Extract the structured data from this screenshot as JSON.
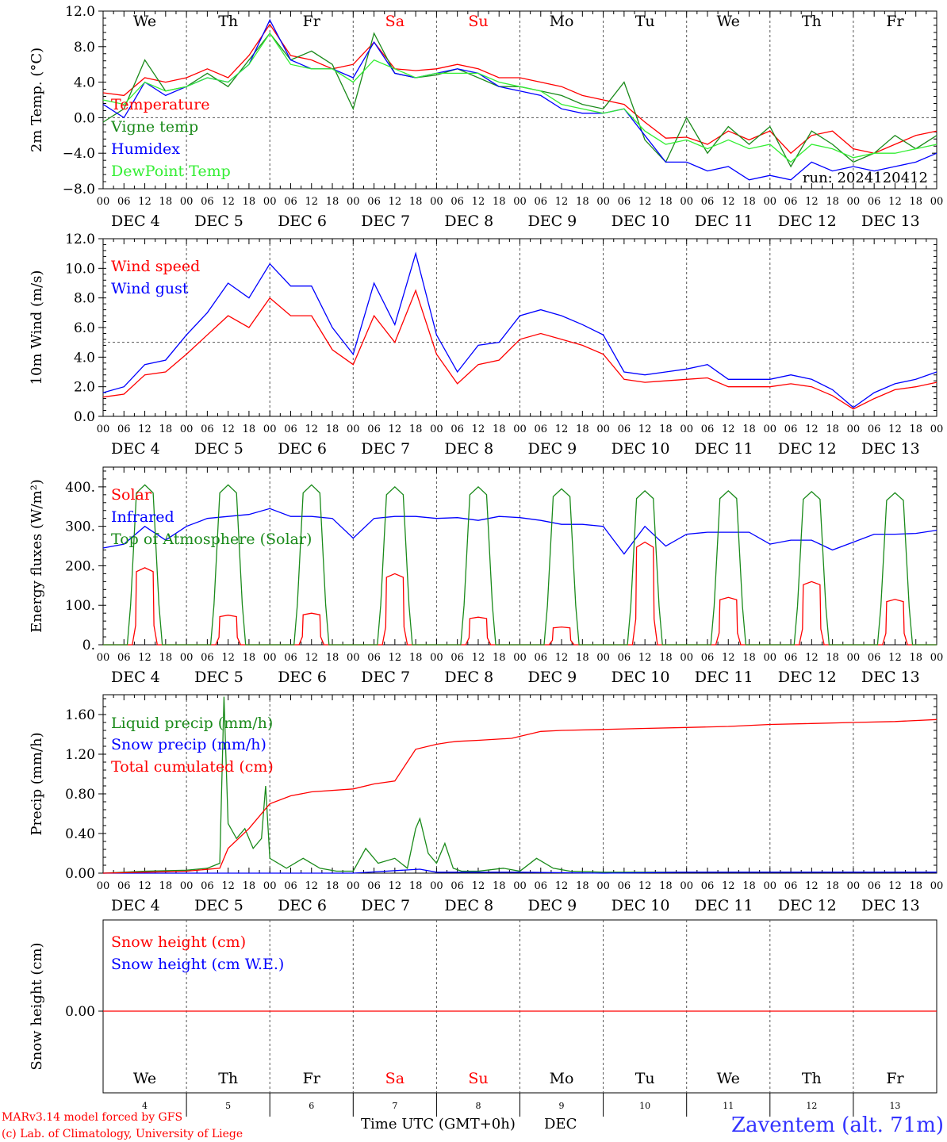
{
  "days": {
    "weekdays": [
      "We",
      "Th",
      "Fr",
      "Sa",
      "Su",
      "Mo",
      "Tu",
      "We",
      "Th",
      "Fr"
    ],
    "weekend_flags": [
      false,
      false,
      false,
      true,
      true,
      false,
      false,
      false,
      false,
      false
    ],
    "dates": [
      "DEC  4",
      "DEC  5",
      "DEC  6",
      "DEC  7",
      "DEC  8",
      "DEC  9",
      "DEC 10",
      "DEC 11",
      "DEC 12",
      "DEC 13"
    ],
    "day_numbers": [
      "4",
      "5",
      "6",
      "7",
      "8",
      "9",
      "10",
      "11",
      "12",
      "13"
    ],
    "hour_ticks": [
      "00",
      "06",
      "12",
      "18"
    ],
    "final_tick": "00"
  },
  "footer": {
    "credit_line1": "MARv3.14 model forced by GFS",
    "credit_line2": "(c) Lab. of Climatology, University of Liege",
    "xlabel": "Time UTC (GMT+0h)",
    "month": "DEC",
    "station": "Zaventem (alt. 71m)"
  },
  "colors": {
    "red": "#ff0000",
    "green": "#1a8a1a",
    "blue": "#0000ff",
    "lightgreen": "#33ee33",
    "weekend": "#ff0000",
    "station": "#3333ff"
  },
  "chart_data": [
    {
      "type": "line",
      "ylabel": "2m Temp. (°C)",
      "ylim": [
        -8,
        12
      ],
      "yticks": [
        "12.0",
        "8.0",
        "4.0",
        "0.0",
        "−4.0",
        "−8.0"
      ],
      "ytick_values": [
        12,
        8,
        4,
        0,
        -4,
        -8
      ],
      "ref_line": 0,
      "x_days": [
        0,
        0.25,
        0.5,
        0.75,
        1,
        1.25,
        1.5,
        1.75,
        2,
        2.25,
        2.5,
        2.75,
        3,
        3.25,
        3.5,
        3.75,
        4,
        4.25,
        4.5,
        4.75,
        5,
        5.25,
        5.5,
        5.75,
        6,
        6.25,
        6.5,
        6.75,
        7,
        7.25,
        7.5,
        7.75,
        8,
        8.25,
        8.5,
        8.75,
        9,
        9.25,
        9.5,
        9.75,
        10
      ],
      "annotation": "run: 2024120412",
      "series": [
        {
          "name": "Temperature",
          "color": "red",
          "values": [
            2.8,
            2.5,
            4.5,
            4.0,
            4.5,
            5.5,
            4.5,
            7.0,
            10.5,
            7.0,
            6.5,
            5.5,
            6.0,
            8.5,
            5.5,
            5.3,
            5.5,
            6.0,
            5.5,
            4.5,
            4.5,
            4.0,
            3.5,
            2.5,
            2.0,
            1.5,
            -0.5,
            -2.3,
            -2.2,
            -3.0,
            -1.5,
            -2.5,
            -1.5,
            -4.0,
            -2.0,
            -1.5,
            -3.5,
            -4.0,
            -3.0,
            -2.0,
            -1.5
          ]
        },
        {
          "name": "Vigne temp",
          "color": "green",
          "values": [
            -0.5,
            1.0,
            6.5,
            3.0,
            3.5,
            5.0,
            3.5,
            6.5,
            9.5,
            6.5,
            7.5,
            6.0,
            1.0,
            9.5,
            5.0,
            4.5,
            4.8,
            5.5,
            4.5,
            3.5,
            3.5,
            3.0,
            2.5,
            1.5,
            1.0,
            4.0,
            -2.5,
            -5.0,
            0.0,
            -4.0,
            -1.0,
            -3.0,
            -1.0,
            -5.5,
            -1.5,
            -3.0,
            -5.0,
            -4.0,
            -2.0,
            -3.5,
            -2.0
          ]
        },
        {
          "name": "Humidex",
          "color": "blue",
          "values": [
            1.5,
            0.0,
            4.0,
            2.5,
            3.5,
            4.5,
            4.0,
            6.0,
            11.0,
            6.5,
            5.5,
            5.5,
            4.5,
            8.5,
            5.0,
            4.5,
            5.0,
            5.5,
            5.0,
            3.5,
            3.0,
            2.5,
            1.0,
            0.5,
            0.5,
            1.0,
            -2.0,
            -5.0,
            -5.0,
            -6.0,
            -5.5,
            -7.0,
            -6.5,
            -7.0,
            -5.0,
            -6.0,
            -5.5,
            -6.0,
            -5.5,
            -5.0,
            -4.0
          ]
        },
        {
          "name": "DewPoint Temp",
          "color": "lightgreen",
          "values": [
            2.0,
            1.5,
            4.0,
            3.0,
            3.5,
            4.5,
            4.0,
            6.0,
            9.5,
            6.0,
            5.5,
            5.5,
            4.0,
            6.5,
            5.5,
            4.5,
            5.0,
            5.0,
            5.0,
            4.0,
            3.5,
            3.0,
            1.5,
            1.0,
            0.5,
            1.0,
            -1.5,
            -3.0,
            -2.5,
            -3.5,
            -2.5,
            -3.5,
            -3.0,
            -5.0,
            -3.0,
            -3.5,
            -4.5,
            -4.0,
            -4.0,
            -3.5,
            -3.0
          ]
        }
      ]
    },
    {
      "type": "line",
      "ylabel": "10m Wind (m/s)",
      "ylim": [
        0,
        12
      ],
      "yticks": [
        "12.0",
        "10.0",
        "8.0",
        "6.0",
        "4.0",
        "2.0",
        "0.0"
      ],
      "ytick_values": [
        12,
        10,
        8,
        6,
        4,
        2,
        0
      ],
      "ref_line": 5,
      "x_days": [
        0,
        0.25,
        0.5,
        0.75,
        1,
        1.25,
        1.5,
        1.75,
        2,
        2.25,
        2.5,
        2.75,
        3,
        3.25,
        3.5,
        3.75,
        4,
        4.25,
        4.5,
        4.75,
        5,
        5.25,
        5.5,
        5.75,
        6,
        6.25,
        6.5,
        6.75,
        7,
        7.25,
        7.5,
        7.75,
        8,
        8.25,
        8.5,
        8.75,
        9,
        9.25,
        9.5,
        9.75,
        10
      ],
      "series": [
        {
          "name": "Wind speed",
          "color": "red",
          "values": [
            1.3,
            1.5,
            2.8,
            3.0,
            4.2,
            5.5,
            6.8,
            6.0,
            8.0,
            6.8,
            6.8,
            4.5,
            3.5,
            6.8,
            5.0,
            8.5,
            4.2,
            2.2,
            3.5,
            3.8,
            5.2,
            5.6,
            5.2,
            4.8,
            4.2,
            2.5,
            2.3,
            2.4,
            2.5,
            2.6,
            2.0,
            2.0,
            2.0,
            2.2,
            2.0,
            1.4,
            0.5,
            1.2,
            1.8,
            2.0,
            2.3
          ]
        },
        {
          "name": "Wind gust",
          "color": "blue",
          "values": [
            1.6,
            2.0,
            3.5,
            3.8,
            5.5,
            7.0,
            9.0,
            8.0,
            10.3,
            8.8,
            8.8,
            6.0,
            4.2,
            9.0,
            6.2,
            11.0,
            5.5,
            3.0,
            4.8,
            5.0,
            6.8,
            7.2,
            6.8,
            6.2,
            5.5,
            3.0,
            2.8,
            3.0,
            3.2,
            3.5,
            2.5,
            2.5,
            2.5,
            2.8,
            2.5,
            1.8,
            0.6,
            1.6,
            2.2,
            2.5,
            3.0
          ]
        }
      ]
    },
    {
      "type": "line",
      "ylabel": "Energy fluxes (W/m²)",
      "ylim": [
        0,
        450
      ],
      "yticks": [
        "400.",
        "300.",
        "200.",
        "100.",
        "0."
      ],
      "ytick_values": [
        400,
        300,
        200,
        100,
        0
      ],
      "series": [
        {
          "name": "Solar",
          "color": "red",
          "peaks": [
            195,
            75,
            80,
            180,
            70,
            45,
            260,
            120,
            160,
            115
          ]
        },
        {
          "name": "Infrared",
          "color": "blue",
          "x_days": [
            0,
            0.25,
            0.5,
            0.75,
            1,
            1.25,
            1.5,
            1.75,
            2,
            2.25,
            2.5,
            2.75,
            3,
            3.25,
            3.5,
            3.75,
            4,
            4.25,
            4.5,
            4.75,
            5,
            5.25,
            5.5,
            5.75,
            6,
            6.25,
            6.5,
            6.75,
            7,
            7.25,
            7.5,
            7.75,
            8,
            8.25,
            8.5,
            8.75,
            9,
            9.25,
            9.5,
            9.75,
            10
          ],
          "values": [
            245,
            255,
            300,
            265,
            300,
            320,
            325,
            330,
            345,
            325,
            325,
            320,
            270,
            320,
            325,
            325,
            320,
            322,
            315,
            325,
            322,
            315,
            305,
            305,
            300,
            230,
            300,
            250,
            280,
            285,
            285,
            285,
            255,
            265,
            265,
            240,
            260,
            280,
            280,
            282,
            290
          ]
        },
        {
          "name": "Top of Atmosphere (Solar)",
          "color": "green",
          "peaks": [
            405,
            405,
            405,
            400,
            400,
            395,
            390,
            390,
            388,
            385
          ]
        }
      ]
    },
    {
      "type": "line",
      "ylabel": "Precip (mm/h)",
      "ylim": [
        0,
        1.8
      ],
      "yticks": [
        "1.60",
        "1.20",
        "0.80",
        "0.40",
        "0.00"
      ],
      "ytick_values": [
        1.6,
        1.2,
        0.8,
        0.4,
        0
      ],
      "series": [
        {
          "name": "Liquid precip (mm/h)",
          "color": "green",
          "x_days": [
            0,
            0.5,
            1,
            1.25,
            1.4,
            1.45,
            1.5,
            1.6,
            1.7,
            1.8,
            1.9,
            1.95,
            2.0,
            2.2,
            2.4,
            2.6,
            2.8,
            3.0,
            3.15,
            3.3,
            3.5,
            3.65,
            3.75,
            3.8,
            3.9,
            4.0,
            4.1,
            4.2,
            4.3,
            4.5,
            4.8,
            5.0,
            5.2,
            5.4,
            5.6,
            6,
            7,
            8,
            9,
            10
          ],
          "values": [
            0,
            0.02,
            0.03,
            0.05,
            0.1,
            1.78,
            0.5,
            0.35,
            0.45,
            0.25,
            0.35,
            0.88,
            0.15,
            0.05,
            0.15,
            0.05,
            0.02,
            0.02,
            0.25,
            0.1,
            0.15,
            0.05,
            0.45,
            0.55,
            0.2,
            0.1,
            0.3,
            0.05,
            0.02,
            0.02,
            0.05,
            0.02,
            0.15,
            0.05,
            0.02,
            0.01,
            0.01,
            0.01,
            0.01,
            0.01
          ]
        },
        {
          "name": "Snow precip (mm/h)",
          "color": "blue",
          "x_days": [
            0,
            1,
            2,
            3,
            3.8,
            4,
            5,
            6,
            7,
            8,
            9,
            10
          ],
          "values": [
            0,
            0,
            0,
            0,
            0.04,
            0.01,
            0.01,
            0,
            0.01,
            0.01,
            0.01,
            0.01
          ]
        },
        {
          "name": "Total cumulated (cm)",
          "color": "red",
          "x_days": [
            0,
            0.5,
            1,
            1.4,
            1.5,
            1.75,
            2.0,
            2.25,
            2.5,
            3.0,
            3.25,
            3.5,
            3.75,
            4.0,
            4.15,
            4.25,
            4.5,
            4.9,
            5.25,
            5.5,
            6,
            6.5,
            7,
            7.5,
            8,
            8.5,
            9,
            9.5,
            10
          ],
          "values": [
            0,
            0.01,
            0.02,
            0.05,
            0.25,
            0.45,
            0.7,
            0.78,
            0.82,
            0.85,
            0.9,
            0.93,
            1.25,
            1.3,
            1.32,
            1.33,
            1.34,
            1.36,
            1.43,
            1.44,
            1.45,
            1.46,
            1.47,
            1.48,
            1.5,
            1.51,
            1.52,
            1.53,
            1.55
          ]
        }
      ]
    },
    {
      "type": "line",
      "ylabel": "Snow height (cm)",
      "yticks": [
        "0.00"
      ],
      "ytick_values": [
        0
      ],
      "series": [
        {
          "name": "Snow height (cm)",
          "color": "red",
          "values": [
            0,
            0
          ]
        },
        {
          "name": "Snow height (cm W.E.)",
          "color": "blue",
          "values": [
            0,
            0
          ]
        }
      ]
    }
  ]
}
